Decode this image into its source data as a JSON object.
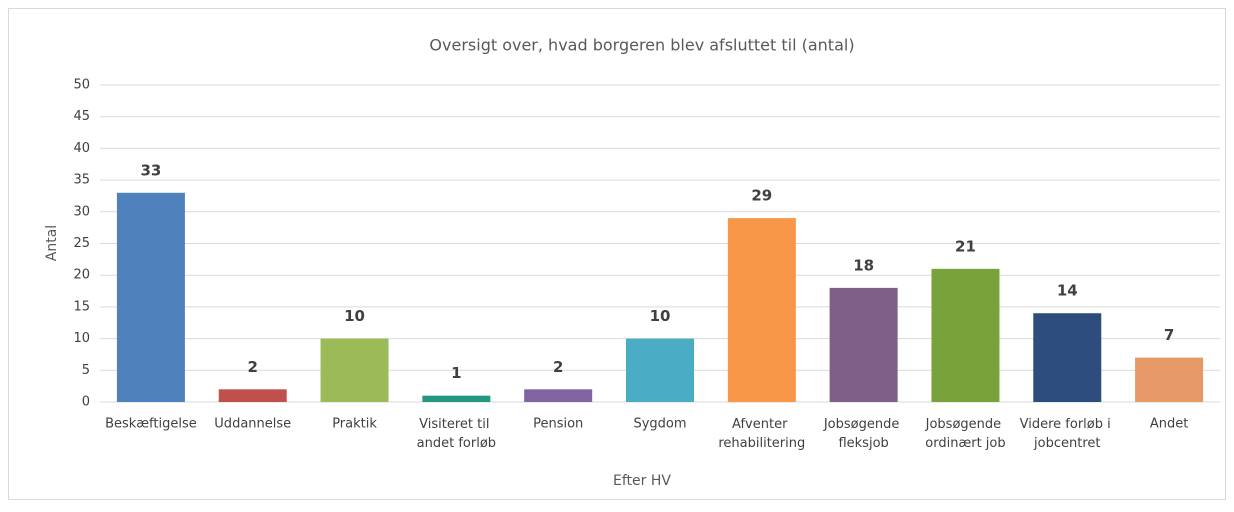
{
  "chart_data": {
    "type": "bar",
    "title": "Oversigt over, hvad borgeren blev afsluttet til (antal)",
    "x_label": "Efter HV",
    "y_label": "Antal",
    "categories": [
      "Beskæftigelse",
      "Uddannelse",
      "Praktik",
      "Visiteret til andet forløb",
      "Pension",
      "Sygdom",
      "Afventer rehabilitering",
      "Jobsøgende fleksjob",
      "Jobsøgende ordinært job",
      "Videre forløb i jobcentret",
      "Andet"
    ],
    "values": [
      33,
      2,
      10,
      1,
      2,
      10,
      29,
      18,
      21,
      14,
      7
    ],
    "colors": [
      "#4f81bd",
      "#c0504d",
      "#9bbb59",
      "#23977f",
      "#8064a2",
      "#4bacc6",
      "#f79646",
      "#7f5f87",
      "#77a33a",
      "#2c4d7e",
      "#e69866"
    ],
    "ylim": [
      0,
      50
    ],
    "yticks": [
      0,
      5,
      10,
      15,
      20,
      25,
      30,
      35,
      40,
      45,
      50
    ],
    "grid": true
  }
}
